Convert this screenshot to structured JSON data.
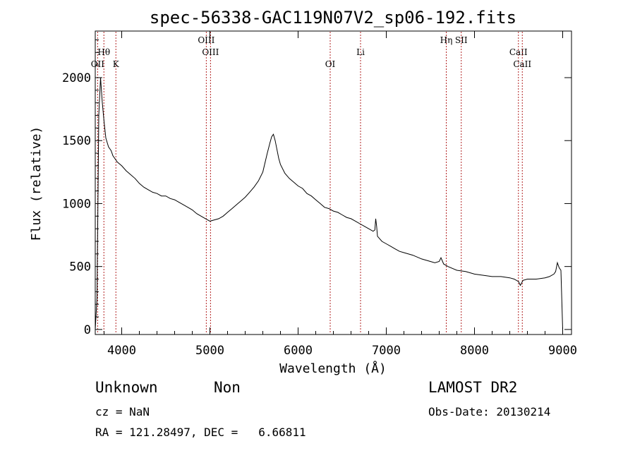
{
  "chart_data": {
    "type": "line",
    "title": "spec-56338-GAC119N07V2_sp06-192.fits",
    "xlabel": "Wavelength (Å)",
    "ylabel": "Flux (relative)",
    "xlim": [
      3700,
      9100
    ],
    "ylim": [
      -40,
      2370
    ],
    "xticks": [
      4000,
      5000,
      6000,
      7000,
      8000,
      9000
    ],
    "yticks": [
      0,
      500,
      1000,
      1500,
      2000
    ],
    "grid": false,
    "series": [
      {
        "x": [
          3700,
          3720,
          3740,
          3760,
          3780,
          3800,
          3820,
          3850,
          3880,
          3900,
          3950,
          4000,
          4050,
          4100,
          4150,
          4200,
          4250,
          4300,
          4350,
          4400,
          4450,
          4500,
          4550,
          4600,
          4650,
          4700,
          4750,
          4800,
          4850,
          4900,
          4950,
          5000,
          5050,
          5100,
          5150,
          5200,
          5250,
          5300,
          5350,
          5400,
          5450,
          5500,
          5550,
          5600,
          5650,
          5680,
          5700,
          5720,
          5740,
          5760,
          5780,
          5800,
          5850,
          5900,
          5950,
          6000,
          6050,
          6100,
          6150,
          6200,
          6250,
          6300,
          6350,
          6400,
          6450,
          6500,
          6550,
          6600,
          6650,
          6700,
          6750,
          6800,
          6850,
          6870,
          6880,
          6890,
          6900,
          6950,
          7000,
          7050,
          7100,
          7150,
          7200,
          7300,
          7400,
          7500,
          7550,
          7600,
          7620,
          7650,
          7700,
          7800,
          7900,
          8000,
          8100,
          8200,
          8300,
          8400,
          8450,
          8500,
          8520,
          8550,
          8600,
          8700,
          8800,
          8850,
          8900,
          8920,
          8940,
          8960,
          8980,
          9000
        ],
        "y": [
          0,
          250,
          1700,
          2000,
          1800,
          1650,
          1520,
          1450,
          1420,
          1380,
          1330,
          1300,
          1260,
          1230,
          1200,
          1160,
          1130,
          1110,
          1090,
          1080,
          1060,
          1060,
          1040,
          1030,
          1010,
          990,
          970,
          950,
          920,
          900,
          880,
          860,
          870,
          880,
          900,
          930,
          960,
          990,
          1020,
          1050,
          1090,
          1130,
          1180,
          1250,
          1400,
          1480,
          1530,
          1550,
          1500,
          1430,
          1360,
          1310,
          1240,
          1200,
          1170,
          1140,
          1120,
          1080,
          1060,
          1030,
          1000,
          970,
          960,
          940,
          930,
          910,
          890,
          880,
          860,
          840,
          820,
          800,
          780,
          790,
          880,
          820,
          740,
          700,
          680,
          660,
          640,
          620,
          610,
          590,
          560,
          540,
          530,
          540,
          570,
          520,
          500,
          470,
          460,
          440,
          430,
          420,
          420,
          410,
          400,
          380,
          350,
          390,
          400,
          400,
          410,
          420,
          440,
          460,
          530,
          490,
          470,
          0
        ]
      }
    ],
    "spectral_lines": [
      {
        "label": "OII",
        "x": 3727
      },
      {
        "label": "Hθ",
        "x": 3798
      },
      {
        "label": "K",
        "x": 3934
      },
      {
        "label": "OIII",
        "x": 4959
      },
      {
        "label": "OIII",
        "x": 5007
      },
      {
        "label": "OI",
        "x": 6364
      },
      {
        "label": "Li",
        "x": 6708
      },
      {
        "label": "Hη",
        "x": 7680
      },
      {
        "label": "SII",
        "x": 7850
      },
      {
        "label": "CaII",
        "x": 8498
      },
      {
        "label": "CaII",
        "x": 8542
      }
    ]
  },
  "footer": {
    "class": "Unknown",
    "subclass": "Non",
    "survey": "LAMOST DR2",
    "cz": "cz = NaN",
    "obs_date": "Obs-Date: 20130214",
    "radec": "RA = 121.28497, DEC =   6.66811"
  },
  "colors": {
    "spectrum": "#000000",
    "line_marker": "#b22222",
    "axes": "#000000"
  }
}
